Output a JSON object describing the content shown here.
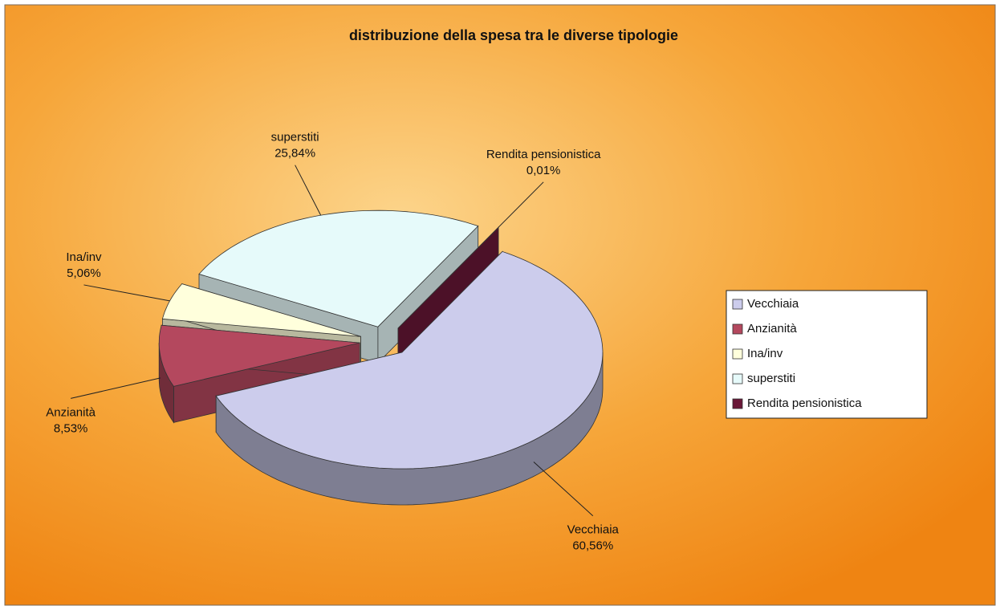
{
  "chart_data": {
    "type": "pie3d",
    "title": "distribuzione della spesa tra le diverse tipologie",
    "categories": [
      "Vecchiaia",
      "Anzianità",
      "Ina/inv",
      "superstiti",
      "Rendita pensionistica"
    ],
    "values": [
      60.56,
      8.53,
      5.06,
      25.84,
      0.01
    ],
    "value_labels": [
      "60,56%",
      "8,53%",
      "5,06%",
      "25,84%",
      "0,01%"
    ],
    "colors": [
      "#ccccec",
      "#b4485e",
      "#ffffdc",
      "#e6fafa",
      "#6a1838"
    ],
    "legend": "right"
  }
}
